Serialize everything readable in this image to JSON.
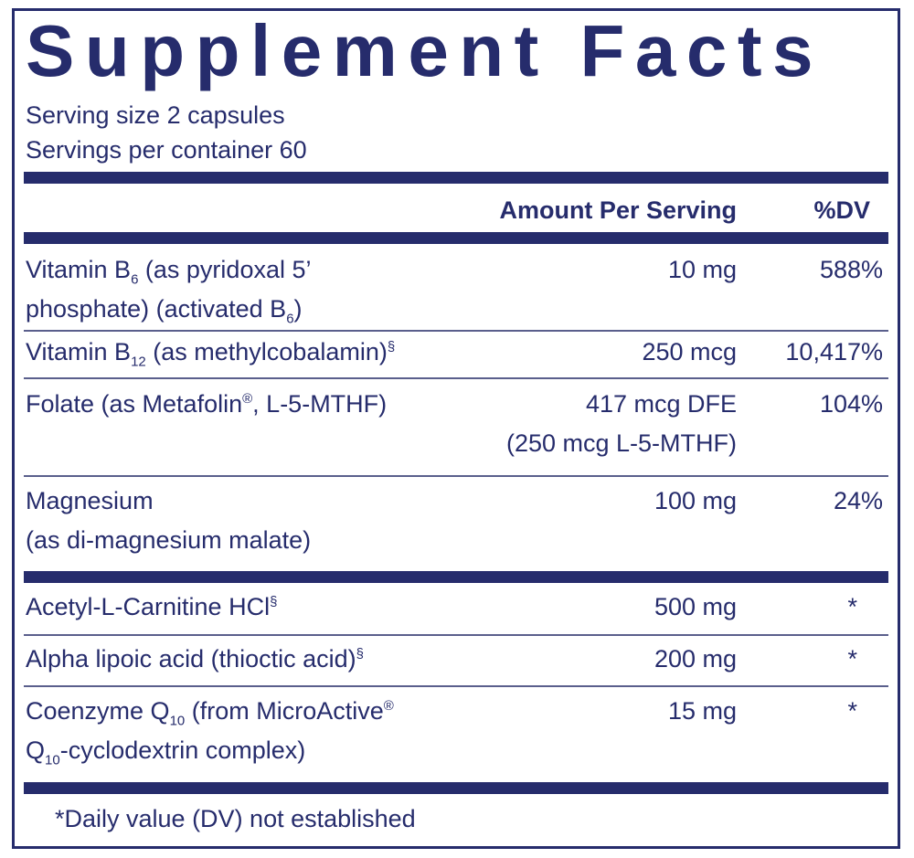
{
  "header": {
    "title": "Supplement Facts",
    "serving_size": "Serving size  2 capsules",
    "servings_per_container": "Servings per container  60"
  },
  "table": {
    "columns": [
      "Amount Per Serving",
      "%DV"
    ],
    "rows": [
      {
        "name": [
          [
            "Vitamin B",
            {
              "sub": "6"
            },
            " (as pyridoxal 5’"
          ],
          [
            "phosphate) (activated B",
            {
              "sub": "6"
            },
            ")"
          ]
        ],
        "amount": [
          "10 mg"
        ],
        "dv": "588%"
      },
      {
        "name": [
          [
            "Vitamin B",
            {
              "sub": "12"
            },
            " (as methylcobalamin)",
            {
              "sup": "§"
            }
          ]
        ],
        "amount": [
          "250 mcg"
        ],
        "dv": "10,417%"
      },
      {
        "name": [
          [
            "Folate (as Metafolin",
            {
              "sup": "®"
            },
            ", L-5-MTHF)"
          ]
        ],
        "amount": [
          "417 mcg DFE",
          "(250 mcg L-5-MTHF)"
        ],
        "dv": "104%"
      },
      {
        "name": [
          [
            "Magnesium"
          ],
          [
            "(as di-magnesium malate)"
          ]
        ],
        "amount": [
          "100 mg"
        ],
        "dv": "24%"
      },
      {
        "name": [
          [
            "Acetyl-L-Carnitine HCl",
            {
              "sup": "§"
            }
          ]
        ],
        "amount": [
          "500 mg"
        ],
        "dv": "*"
      },
      {
        "name": [
          [
            "Alpha lipoic acid (thioctic acid)",
            {
              "sup": "§"
            }
          ]
        ],
        "amount": [
          "200 mg"
        ],
        "dv": "*"
      },
      {
        "name": [
          [
            "Coenzyme Q",
            {
              "sub": "10"
            },
            " (from MicroActive",
            {
              "sup": "®"
            }
          ],
          [
            "Q",
            {
              "sub": "10"
            },
            "-cyclodextrin complex)"
          ]
        ],
        "amount": [
          "15 mg"
        ],
        "dv": "*"
      }
    ]
  },
  "footnote": "*Daily value (DV) not established"
}
